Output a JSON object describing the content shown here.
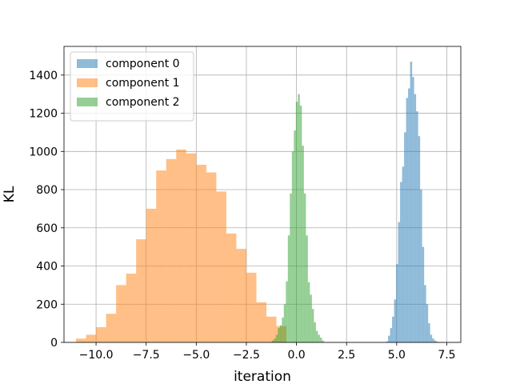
{
  "chart_data": {
    "type": "bar",
    "xlabel": "iteration",
    "ylabel": "KL",
    "xlim": [
      -11.6,
      8.2
    ],
    "ylim": [
      0,
      1550
    ],
    "xticks": [
      -10.0,
      -7.5,
      -5.0,
      -2.5,
      0.0,
      2.5,
      5.0,
      7.5
    ],
    "xtick_labels": [
      "−10.0",
      "−7.5",
      "−5.0",
      "−2.5",
      "0.0",
      "2.5",
      "5.0",
      "7.5"
    ],
    "yticks": [
      0,
      200,
      400,
      600,
      800,
      1000,
      1200,
      1400
    ],
    "ytick_labels": [
      "0",
      "200",
      "400",
      "600",
      "800",
      "1000",
      "1200",
      "1400"
    ],
    "grid": true,
    "legend_position": "top-left",
    "series": [
      {
        "name": "component 0",
        "color": "#1f77b4",
        "bin_edges": [
          4.47,
          4.57,
          4.67,
          4.77,
          4.87,
          4.97,
          5.07,
          5.17,
          5.27,
          5.37,
          5.47,
          5.57,
          5.67,
          5.77,
          5.87,
          5.97,
          6.07,
          6.17,
          6.27,
          6.37,
          6.47,
          6.57,
          6.67,
          6.77,
          6.87,
          6.97,
          7.07,
          7.17,
          7.27,
          7.37,
          7.47
        ],
        "counts": [
          5,
          35,
          75,
          135,
          225,
          410,
          630,
          840,
          920,
          1100,
          1280,
          1330,
          1470,
          1390,
          1300,
          1210,
          1080,
          800,
          500,
          300,
          200,
          100,
          40,
          20,
          10,
          4,
          2,
          1,
          0,
          0
        ]
      },
      {
        "name": "component 1",
        "color": "#ff7f0e",
        "bin_edges": [
          -11.0,
          -10.5,
          -10.0,
          -9.5,
          -9.0,
          -8.5,
          -8.0,
          -7.5,
          -7.0,
          -6.5,
          -6.0,
          -5.5,
          -5.0,
          -4.5,
          -4.0,
          -3.5,
          -3.0,
          -2.5,
          -2.0,
          -1.5,
          -1.0,
          -0.5
        ],
        "counts": [
          20,
          40,
          80,
          150,
          300,
          360,
          540,
          700,
          900,
          960,
          1010,
          990,
          930,
          890,
          790,
          570,
          490,
          365,
          210,
          135,
          85
        ]
      },
      {
        "name": "component 2",
        "color": "#2ca02c",
        "bin_edges": [
          -1.23,
          -1.13,
          -1.03,
          -0.93,
          -0.83,
          -0.73,
          -0.63,
          -0.53,
          -0.43,
          -0.33,
          -0.23,
          -0.13,
          -0.03,
          0.07,
          0.17,
          0.27,
          0.37,
          0.47,
          0.57,
          0.67,
          0.77,
          0.87,
          0.97,
          1.07,
          1.17,
          1.27,
          1.37
        ],
        "counts": [
          10,
          20,
          40,
          75,
          90,
          130,
          200,
          320,
          560,
          780,
          1000,
          1110,
          1260,
          1300,
          1240,
          1030,
          780,
          560,
          315,
          250,
          175,
          105,
          60,
          40,
          25,
          10
        ]
      }
    ]
  }
}
